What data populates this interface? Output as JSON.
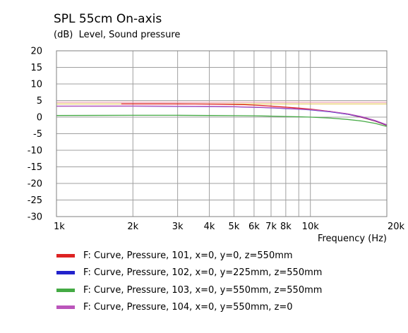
{
  "chart_data": {
    "type": "line",
    "title": "SPL 55cm On-axis",
    "ylabel": "(dB)  Level, Sound pressure",
    "xlabel": "Frequency  (Hz)",
    "xscale": "log",
    "xlim": [
      1000,
      20000
    ],
    "ylim": [
      -30,
      20
    ],
    "grid": true,
    "legend": "bottom",
    "x_ticks": [
      {
        "value": 1000,
        "label": "1k"
      },
      {
        "value": 2000,
        "label": "2k"
      },
      {
        "value": 3000,
        "label": "3k"
      },
      {
        "value": 4000,
        "label": "4k"
      },
      {
        "value": 5000,
        "label": "5k"
      },
      {
        "value": 6000,
        "label": "6k"
      },
      {
        "value": 7000,
        "label": "7k"
      },
      {
        "value": 8000,
        "label": "8k"
      },
      {
        "value": 10000,
        "label": "10k"
      },
      {
        "value": 20000,
        "label": "20k"
      }
    ],
    "x_minor_ticks": [
      9000
    ],
    "y_ticks": [
      20,
      15,
      10,
      5,
      0,
      -5,
      -10,
      -15,
      -20,
      -25,
      -30
    ],
    "series": [
      {
        "name": "F: Curve, Pressure, 101, x=0, y=0, z=550mm",
        "color": "#dd2222",
        "x": [
          1800,
          2500,
          3500,
          4500,
          5500,
          6500,
          8000,
          9000,
          10000,
          12000,
          14000,
          16000,
          18000,
          20000
        ],
        "y": [
          4.0,
          4.0,
          3.95,
          3.9,
          3.75,
          3.5,
          3.0,
          2.7,
          2.4,
          1.7,
          0.9,
          -0.1,
          -1.2,
          -2.5
        ]
      },
      {
        "name": "F: Curve, Pressure, 102, x=0, y=225mm, z=550mm",
        "color": "#2222cc",
        "x": [
          1000,
          2000,
          3000,
          4000,
          5000,
          6000,
          7000,
          8000,
          9000,
          10000,
          12000,
          14000,
          16000,
          18000,
          20000
        ],
        "y": [
          3.3,
          3.3,
          3.25,
          3.2,
          3.1,
          2.95,
          2.8,
          2.6,
          2.4,
          2.2,
          1.6,
          0.9,
          0.0,
          -1.1,
          -2.4
        ]
      },
      {
        "name": "F: Curve, Pressure, 103, x=0, y=550mm, z=550mm",
        "color": "#44aa44",
        "x": [
          1000,
          2000,
          3000,
          4000,
          5000,
          6000,
          7000,
          8000,
          9000,
          10000,
          12000,
          14000,
          16000,
          18000,
          20000
        ],
        "y": [
          0.5,
          0.55,
          0.55,
          0.5,
          0.45,
          0.4,
          0.3,
          0.2,
          0.1,
          0.0,
          -0.3,
          -0.7,
          -1.2,
          -1.9,
          -2.8
        ]
      },
      {
        "name": "F: Curve, Pressure, 104, x=0, y=550mm, z=0",
        "color": "#bb55bb",
        "x": [
          1000,
          2000,
          3000,
          4000,
          5000,
          6000,
          7000,
          8000,
          9000,
          10000,
          12000,
          14000,
          16000,
          18000,
          20000
        ],
        "y": [
          3.3,
          3.35,
          3.3,
          3.25,
          3.15,
          3.0,
          2.85,
          2.65,
          2.45,
          2.25,
          1.7,
          1.0,
          0.1,
          -1.0,
          -2.3
        ]
      }
    ],
    "reference_lines": [
      {
        "y": 4.5,
        "color": "#e88aa0"
      },
      {
        "y": 4.0,
        "color": "#e0c040"
      }
    ]
  }
}
